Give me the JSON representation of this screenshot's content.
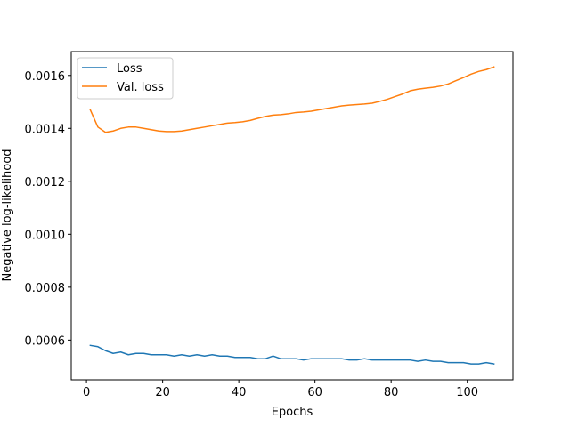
{
  "chart_data": {
    "type": "line",
    "title": "",
    "xlabel": "Epochs",
    "ylabel": "Negative log-likelihood",
    "xlim": [
      -4,
      112
    ],
    "ylim": [
      0.00045,
      0.00169
    ],
    "xticks": [
      0,
      20,
      40,
      60,
      80,
      100
    ],
    "xtick_labels": [
      "0",
      "20",
      "40",
      "60",
      "80",
      "100"
    ],
    "yticks": [
      0.0006,
      0.0008,
      0.001,
      0.0012,
      0.0014,
      0.0016
    ],
    "ytick_labels": [
      "0.0006",
      "0.0008",
      "0.0010",
      "0.0012",
      "0.0014",
      "0.0016"
    ],
    "grid": false,
    "legend": {
      "position": "top-left",
      "entries": [
        "Loss",
        "Val. loss"
      ]
    },
    "colors": {
      "Loss": "#1f77b4",
      "Val. loss": "#ff7f0e"
    },
    "series": [
      {
        "name": "Loss",
        "x": [
          1,
          3,
          5,
          7,
          9,
          11,
          13,
          15,
          17,
          19,
          21,
          23,
          25,
          27,
          29,
          31,
          33,
          35,
          37,
          39,
          41,
          43,
          45,
          47,
          49,
          51,
          53,
          55,
          57,
          59,
          61,
          63,
          65,
          67,
          69,
          71,
          73,
          75,
          77,
          79,
          81,
          83,
          85,
          87,
          89,
          91,
          93,
          95,
          97,
          99,
          101,
          103,
          105,
          107
        ],
        "values": [
          0.00058,
          0.000575,
          0.00056,
          0.00055,
          0.000555,
          0.000545,
          0.00055,
          0.00055,
          0.000545,
          0.000545,
          0.000545,
          0.00054,
          0.000545,
          0.00054,
          0.000545,
          0.00054,
          0.000545,
          0.00054,
          0.00054,
          0.000535,
          0.000535,
          0.000535,
          0.00053,
          0.00053,
          0.00054,
          0.00053,
          0.00053,
          0.00053,
          0.000525,
          0.00053,
          0.00053,
          0.00053,
          0.00053,
          0.00053,
          0.000525,
          0.000525,
          0.00053,
          0.000525,
          0.000525,
          0.000525,
          0.000525,
          0.000525,
          0.000525,
          0.00052,
          0.000525,
          0.00052,
          0.00052,
          0.000515,
          0.000515,
          0.000515,
          0.00051,
          0.00051,
          0.000515,
          0.00051
        ]
      },
      {
        "name": "Val. loss",
        "x": [
          1,
          3,
          5,
          7,
          9,
          11,
          13,
          15,
          17,
          19,
          21,
          23,
          25,
          27,
          29,
          31,
          33,
          35,
          37,
          39,
          41,
          43,
          45,
          47,
          49,
          51,
          53,
          55,
          57,
          59,
          61,
          63,
          65,
          67,
          69,
          71,
          73,
          75,
          77,
          79,
          81,
          83,
          85,
          87,
          89,
          91,
          93,
          95,
          97,
          99,
          101,
          103,
          105,
          107
        ],
        "values": [
          0.00147,
          0.001405,
          0.001385,
          0.00139,
          0.0014,
          0.001405,
          0.001405,
          0.0014,
          0.001395,
          0.00139,
          0.001388,
          0.001388,
          0.00139,
          0.001395,
          0.0014,
          0.001405,
          0.00141,
          0.001415,
          0.00142,
          0.001422,
          0.001425,
          0.00143,
          0.001438,
          0.001445,
          0.00145,
          0.001452,
          0.001455,
          0.00146,
          0.001462,
          0.001465,
          0.00147,
          0.001475,
          0.00148,
          0.001485,
          0.001488,
          0.00149,
          0.001492,
          0.001495,
          0.001502,
          0.00151,
          0.00152,
          0.00153,
          0.001542,
          0.001548,
          0.001552,
          0.001555,
          0.00156,
          0.001568,
          0.00158,
          0.001592,
          0.001605,
          0.001615,
          0.001622,
          0.001632
        ]
      }
    ]
  }
}
